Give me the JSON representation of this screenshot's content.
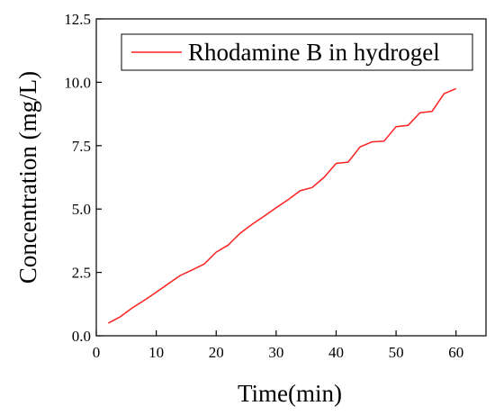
{
  "chart_data": {
    "type": "line",
    "title": "",
    "xlabel": "Time(min)",
    "ylabel": "Concentration (mg/L)",
    "xlim": [
      0,
      65
    ],
    "ylim": [
      0,
      12.5
    ],
    "x_ticks": [
      "0",
      "10",
      "20",
      "30",
      "40",
      "50",
      "60"
    ],
    "y_ticks": [
      "0.0",
      "2.5",
      "5.0",
      "7.5",
      "10.0",
      "12.5"
    ],
    "grid": false,
    "legend_position": "top-right",
    "series": [
      {
        "name": "Rhodamine B in hydrogel",
        "color": "#ff2020",
        "x": [
          2,
          4,
          6,
          8,
          10,
          12,
          14,
          16,
          18,
          20,
          22,
          24,
          26,
          28,
          30,
          32,
          34,
          36,
          38,
          40,
          42,
          44,
          46,
          48,
          50,
          52,
          54,
          56,
          58,
          60
        ],
        "y": [
          0.5,
          0.75,
          1.1,
          1.4,
          1.72,
          2.05,
          2.38,
          2.6,
          2.83,
          3.3,
          3.58,
          4.05,
          4.4,
          4.72,
          5.05,
          5.37,
          5.72,
          5.85,
          6.25,
          6.8,
          6.85,
          7.45,
          7.65,
          7.68,
          8.25,
          8.3,
          8.8,
          8.85,
          9.55,
          9.75
        ]
      }
    ]
  }
}
